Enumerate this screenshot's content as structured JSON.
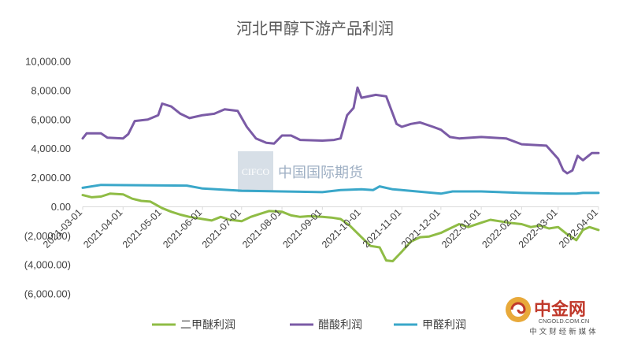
{
  "chart_data": {
    "type": "line",
    "title": "河北甲醇下游产品利润",
    "xlabel": "",
    "ylabel": "",
    "ylim": [
      -6000,
      10000
    ],
    "yticks": [
      10000,
      8000,
      6000,
      4000,
      2000,
      0,
      -2000,
      -4000,
      -6000
    ],
    "ytick_labels": [
      "10,000.00",
      "8,000.00",
      "6,000.00",
      "4,000.00",
      "2,000.00",
      "0.00",
      "(2,000.00)",
      "(4,000.00)",
      "(6,000.00)"
    ],
    "x_start": "2021-03-01",
    "x_end": "2022-04-01",
    "xtick_labels": [
      "2021-03-01",
      "2021-04-01",
      "2021-05-01",
      "2021-06-01",
      "2021-07-01",
      "2021-08-01",
      "2021-09-01",
      "2021-10-01",
      "2021-11-01",
      "2021-12-01",
      "2022-01-01",
      "2022-02-01",
      "2022-03-01",
      "2022-04-01"
    ],
    "grid": false,
    "legend_position": "bottom",
    "series": [
      {
        "name": "二甲醚利润",
        "color": "#8fbc45",
        "points": [
          [
            "2021-03-01",
            800
          ],
          [
            "2021-03-08",
            650
          ],
          [
            "2021-03-15",
            700
          ],
          [
            "2021-03-22",
            900
          ],
          [
            "2021-04-01",
            850
          ],
          [
            "2021-04-08",
            550
          ],
          [
            "2021-04-15",
            400
          ],
          [
            "2021-04-22",
            350
          ],
          [
            "2021-05-01",
            -100
          ],
          [
            "2021-05-08",
            -350
          ],
          [
            "2021-05-15",
            -550
          ],
          [
            "2021-05-22",
            -700
          ],
          [
            "2021-06-01",
            -850
          ],
          [
            "2021-06-08",
            -950
          ],
          [
            "2021-06-15",
            -700
          ],
          [
            "2021-06-22",
            -900
          ],
          [
            "2021-07-01",
            -1000
          ],
          [
            "2021-07-08",
            -700
          ],
          [
            "2021-07-15",
            -500
          ],
          [
            "2021-07-22",
            -300
          ],
          [
            "2021-08-01",
            -350
          ],
          [
            "2021-08-08",
            -600
          ],
          [
            "2021-08-15",
            -700
          ],
          [
            "2021-08-22",
            -650
          ],
          [
            "2021-09-01",
            -700
          ],
          [
            "2021-09-08",
            -750
          ],
          [
            "2021-09-15",
            -850
          ],
          [
            "2021-09-22",
            -1300
          ],
          [
            "2021-10-01",
            -2100
          ],
          [
            "2021-10-08",
            -2700
          ],
          [
            "2021-10-15",
            -2800
          ],
          [
            "2021-10-20",
            -3700
          ],
          [
            "2021-10-25",
            -3750
          ],
          [
            "2021-11-01",
            -3100
          ],
          [
            "2021-11-08",
            -2400
          ],
          [
            "2021-11-15",
            -2100
          ],
          [
            "2021-11-22",
            -2050
          ],
          [
            "2021-12-01",
            -1800
          ],
          [
            "2021-12-08",
            -1500
          ],
          [
            "2021-12-15",
            -1200
          ],
          [
            "2021-12-22",
            -1400
          ],
          [
            "2022-01-01",
            -1100
          ],
          [
            "2022-01-08",
            -900
          ],
          [
            "2022-01-15",
            -1000
          ],
          [
            "2022-01-22",
            -1100
          ],
          [
            "2022-02-01",
            -1200
          ],
          [
            "2022-02-08",
            -1400
          ],
          [
            "2022-02-15",
            -1300
          ],
          [
            "2022-02-22",
            -1500
          ],
          [
            "2022-03-01",
            -1400
          ],
          [
            "2022-03-08",
            -1900
          ],
          [
            "2022-03-15",
            -2300
          ],
          [
            "2022-03-20",
            -1600
          ],
          [
            "2022-03-25",
            -1400
          ],
          [
            "2022-04-01",
            -1600
          ]
        ]
      },
      {
        "name": "醋酸利润",
        "color": "#7b5ba6",
        "points": [
          [
            "2021-03-01",
            4700
          ],
          [
            "2021-03-04",
            5050
          ],
          [
            "2021-03-15",
            5050
          ],
          [
            "2021-03-20",
            4750
          ],
          [
            "2021-04-01",
            4700
          ],
          [
            "2021-04-05",
            5000
          ],
          [
            "2021-04-10",
            5900
          ],
          [
            "2021-04-20",
            6000
          ],
          [
            "2021-04-28",
            6300
          ],
          [
            "2021-05-01",
            7100
          ],
          [
            "2021-05-08",
            6900
          ],
          [
            "2021-05-15",
            6400
          ],
          [
            "2021-05-22",
            6100
          ],
          [
            "2021-06-01",
            6300
          ],
          [
            "2021-06-10",
            6400
          ],
          [
            "2021-06-18",
            6700
          ],
          [
            "2021-06-28",
            6600
          ],
          [
            "2021-07-05",
            5500
          ],
          [
            "2021-07-12",
            4700
          ],
          [
            "2021-07-20",
            4400
          ],
          [
            "2021-07-26",
            4350
          ],
          [
            "2021-08-01",
            4900
          ],
          [
            "2021-08-08",
            4900
          ],
          [
            "2021-08-15",
            4600
          ],
          [
            "2021-09-01",
            4550
          ],
          [
            "2021-09-10",
            4600
          ],
          [
            "2021-09-15",
            4700
          ],
          [
            "2021-09-20",
            6300
          ],
          [
            "2021-09-25",
            6800
          ],
          [
            "2021-09-28",
            8200
          ],
          [
            "2021-10-01",
            7500
          ],
          [
            "2021-10-12",
            7700
          ],
          [
            "2021-10-20",
            7600
          ],
          [
            "2021-10-28",
            5700
          ],
          [
            "2021-11-01",
            5500
          ],
          [
            "2021-11-08",
            5700
          ],
          [
            "2021-11-15",
            5800
          ],
          [
            "2021-11-25",
            5500
          ],
          [
            "2021-12-01",
            5300
          ],
          [
            "2021-12-08",
            4800
          ],
          [
            "2021-12-15",
            4700
          ],
          [
            "2022-01-01",
            4800
          ],
          [
            "2022-01-20",
            4700
          ],
          [
            "2022-02-01",
            4300
          ],
          [
            "2022-02-20",
            4200
          ],
          [
            "2022-03-01",
            3300
          ],
          [
            "2022-03-05",
            2500
          ],
          [
            "2022-03-08",
            2300
          ],
          [
            "2022-03-12",
            2500
          ],
          [
            "2022-03-16",
            3500
          ],
          [
            "2022-03-20",
            3200
          ],
          [
            "2022-03-27",
            3700
          ],
          [
            "2022-04-01",
            3700
          ]
        ]
      },
      {
        "name": "甲醛利润",
        "color": "#3aa7c9",
        "points": [
          [
            "2021-03-01",
            1300
          ],
          [
            "2021-03-15",
            1500
          ],
          [
            "2021-05-20",
            1450
          ],
          [
            "2021-06-01",
            1250
          ],
          [
            "2021-07-01",
            1100
          ],
          [
            "2021-08-01",
            1050
          ],
          [
            "2021-09-01",
            1000
          ],
          [
            "2021-09-15",
            1150
          ],
          [
            "2021-10-01",
            1200
          ],
          [
            "2021-10-10",
            1150
          ],
          [
            "2021-10-15",
            1400
          ],
          [
            "2021-10-25",
            1200
          ],
          [
            "2021-11-01",
            1150
          ],
          [
            "2021-12-01",
            900
          ],
          [
            "2021-12-10",
            1050
          ],
          [
            "2022-01-01",
            1050
          ],
          [
            "2022-02-01",
            950
          ],
          [
            "2022-03-01",
            900
          ],
          [
            "2022-03-15",
            900
          ],
          [
            "2022-03-20",
            950
          ],
          [
            "2022-04-01",
            950
          ]
        ]
      }
    ]
  },
  "watermark": {
    "box_text": "CIFCO",
    "text": "中国国际期货"
  },
  "logo": {
    "name": "中金网",
    "url_text": "CNGOLD.COM.CN",
    "tagline": "中文财经新媒体"
  }
}
